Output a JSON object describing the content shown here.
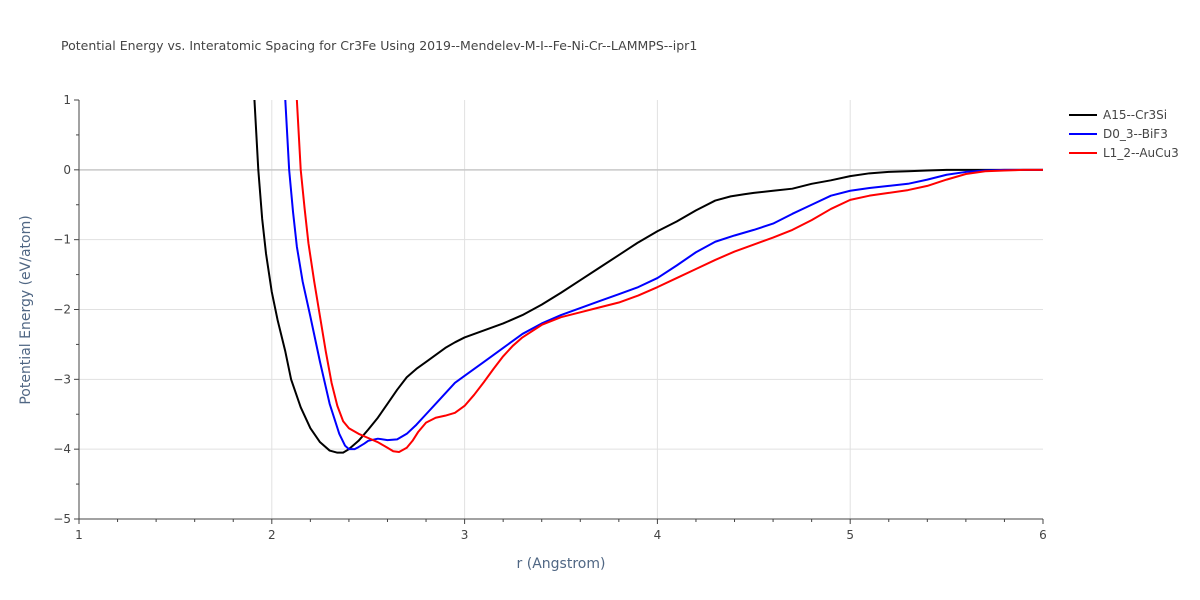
{
  "chart_data": {
    "type": "line",
    "title": "Potential Energy vs. Interatomic Spacing for Cr3Fe Using 2019--Mendelev-M-I--Fe-Ni-Cr--LAMMPS--ipr1",
    "xlabel": "r (Angstrom)",
    "ylabel": "Potential Energy (eV/atom)",
    "xlim": [
      1,
      6
    ],
    "ylim": [
      -5,
      1
    ],
    "xticks": [
      1,
      2,
      3,
      4,
      5,
      6
    ],
    "yticks": [
      1,
      0,
      -1,
      -2,
      -3,
      -4,
      -5
    ],
    "xtick_labels": [
      "1",
      "2",
      "3",
      "4",
      "5",
      "6"
    ],
    "ytick_labels": [
      "1",
      "0",
      "−1",
      "−2",
      "−3",
      "−4",
      "−5"
    ],
    "grid": true,
    "legend_position": "top-right",
    "series": [
      {
        "name": "A15--Cr3Si",
        "color": "#000000",
        "x": [
          1.91,
          1.93,
          1.95,
          1.97,
          2.0,
          2.03,
          2.07,
          2.1,
          2.15,
          2.2,
          2.25,
          2.3,
          2.34,
          2.37,
          2.4,
          2.45,
          2.5,
          2.55,
          2.6,
          2.65,
          2.7,
          2.75,
          2.8,
          2.85,
          2.9,
          2.95,
          3.0,
          3.05,
          3.1,
          3.2,
          3.3,
          3.4,
          3.5,
          3.6,
          3.7,
          3.8,
          3.9,
          4.0,
          4.1,
          4.2,
          4.3,
          4.38,
          4.45,
          4.5,
          4.6,
          4.7,
          4.8,
          4.9,
          5.0,
          5.1,
          5.2,
          5.3,
          5.4,
          5.5,
          5.6,
          5.7,
          5.8,
          5.9,
          6.0
        ],
        "y": [
          1.0,
          0.0,
          -0.7,
          -1.2,
          -1.75,
          -2.15,
          -2.6,
          -3.0,
          -3.4,
          -3.7,
          -3.9,
          -4.02,
          -4.05,
          -4.05,
          -4.0,
          -3.88,
          -3.72,
          -3.55,
          -3.35,
          -3.15,
          -2.97,
          -2.85,
          -2.75,
          -2.65,
          -2.55,
          -2.47,
          -2.4,
          -2.35,
          -2.3,
          -2.2,
          -2.08,
          -1.93,
          -1.76,
          -1.58,
          -1.4,
          -1.22,
          -1.04,
          -0.88,
          -0.74,
          -0.58,
          -0.44,
          -0.38,
          -0.35,
          -0.33,
          -0.3,
          -0.27,
          -0.2,
          -0.15,
          -0.09,
          -0.05,
          -0.03,
          -0.02,
          -0.01,
          0.0,
          0.0,
          0.0,
          0.0,
          0.0,
          0.0
        ]
      },
      {
        "name": "D0_3--BiF3",
        "color": "#0000ff",
        "x": [
          2.07,
          2.09,
          2.11,
          2.13,
          2.16,
          2.2,
          2.25,
          2.3,
          2.35,
          2.38,
          2.4,
          2.43,
          2.45,
          2.48,
          2.5,
          2.55,
          2.6,
          2.65,
          2.7,
          2.75,
          2.8,
          2.85,
          2.9,
          2.95,
          3.0,
          3.1,
          3.2,
          3.3,
          3.4,
          3.5,
          3.6,
          3.7,
          3.8,
          3.9,
          4.0,
          4.1,
          4.2,
          4.3,
          4.4,
          4.5,
          4.6,
          4.7,
          4.8,
          4.9,
          5.0,
          5.1,
          5.2,
          5.3,
          5.4,
          5.5,
          5.6,
          5.7,
          5.8,
          5.9,
          6.0
        ],
        "y": [
          1.0,
          0.0,
          -0.6,
          -1.1,
          -1.6,
          -2.1,
          -2.75,
          -3.35,
          -3.78,
          -3.95,
          -4.0,
          -4.0,
          -3.97,
          -3.92,
          -3.88,
          -3.85,
          -3.87,
          -3.86,
          -3.78,
          -3.65,
          -3.5,
          -3.35,
          -3.2,
          -3.05,
          -2.95,
          -2.75,
          -2.55,
          -2.35,
          -2.2,
          -2.08,
          -1.98,
          -1.88,
          -1.78,
          -1.68,
          -1.55,
          -1.37,
          -1.18,
          -1.03,
          -0.94,
          -0.86,
          -0.77,
          -0.63,
          -0.5,
          -0.37,
          -0.3,
          -0.26,
          -0.23,
          -0.2,
          -0.14,
          -0.07,
          -0.03,
          -0.01,
          0.0,
          0.0,
          0.0
        ]
      },
      {
        "name": "L1_2--AuCu3",
        "color": "#ff0000",
        "x": [
          2.13,
          2.15,
          2.17,
          2.19,
          2.22,
          2.25,
          2.28,
          2.31,
          2.34,
          2.37,
          2.4,
          2.45,
          2.5,
          2.55,
          2.6,
          2.63,
          2.66,
          2.7,
          2.73,
          2.76,
          2.8,
          2.85,
          2.9,
          2.95,
          3.0,
          3.05,
          3.1,
          3.15,
          3.2,
          3.25,
          3.3,
          3.4,
          3.5,
          3.6,
          3.7,
          3.8,
          3.9,
          4.0,
          4.1,
          4.2,
          4.3,
          4.4,
          4.5,
          4.6,
          4.7,
          4.8,
          4.9,
          5.0,
          5.1,
          5.2,
          5.3,
          5.4,
          5.5,
          5.6,
          5.7,
          5.8,
          5.9,
          6.0
        ],
        "y": [
          1.0,
          0.0,
          -0.55,
          -1.05,
          -1.6,
          -2.1,
          -2.6,
          -3.05,
          -3.38,
          -3.6,
          -3.7,
          -3.78,
          -3.84,
          -3.9,
          -3.98,
          -4.03,
          -4.04,
          -3.98,
          -3.88,
          -3.75,
          -3.62,
          -3.55,
          -3.52,
          -3.48,
          -3.38,
          -3.22,
          -3.04,
          -2.85,
          -2.67,
          -2.52,
          -2.4,
          -2.22,
          -2.11,
          -2.04,
          -1.97,
          -1.9,
          -1.8,
          -1.68,
          -1.55,
          -1.42,
          -1.29,
          -1.17,
          -1.07,
          -0.97,
          -0.86,
          -0.72,
          -0.56,
          -0.43,
          -0.37,
          -0.33,
          -0.29,
          -0.23,
          -0.14,
          -0.06,
          -0.02,
          -0.01,
          0.0,
          0.0
        ]
      }
    ]
  }
}
